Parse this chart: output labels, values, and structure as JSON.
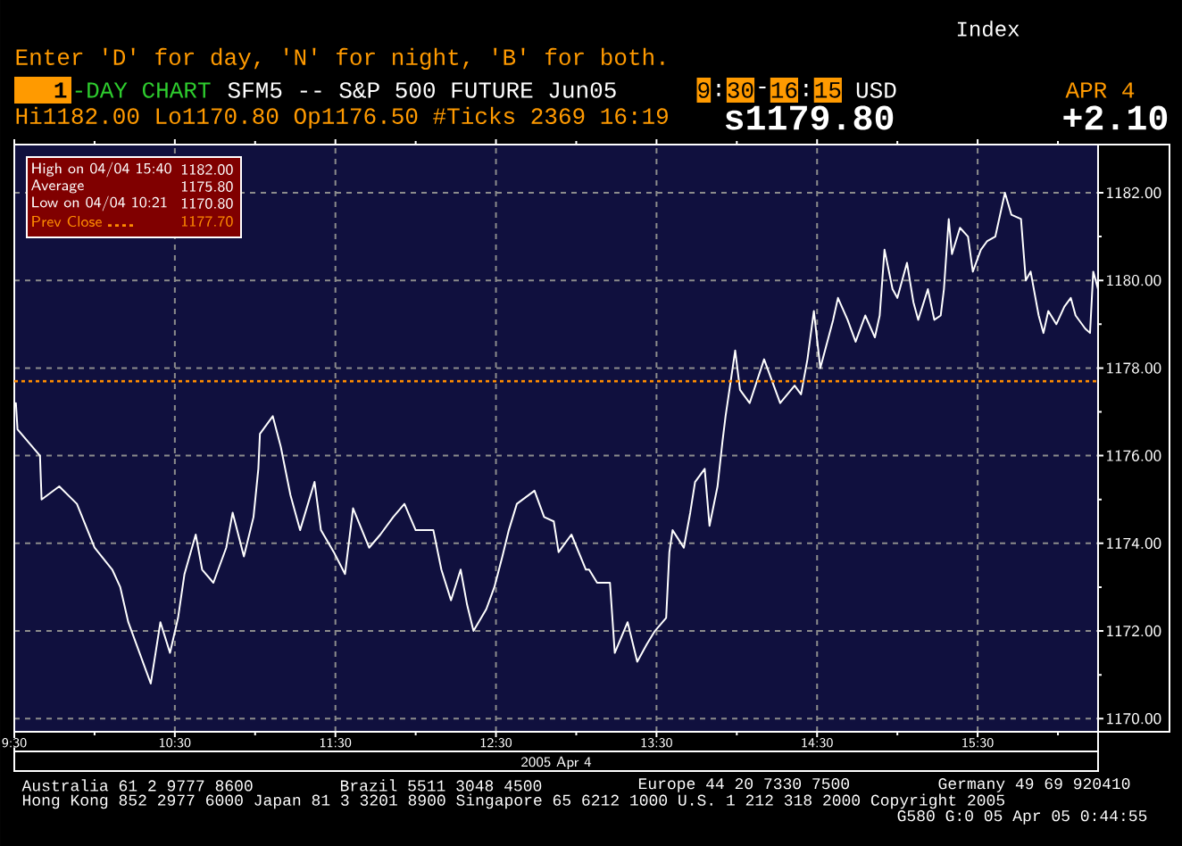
{
  "chart_data": {
    "type": "line",
    "title": "SFM5 -- S&P 500 FUTURE Jun05",
    "xlabel": "2005 Apr 4",
    "x": [
      9.51,
      9.52,
      9.66,
      9.67,
      9.78,
      9.89,
      10.0,
      10.11,
      10.16,
      10.21,
      10.35,
      10.41,
      10.47,
      10.52,
      10.56,
      10.63,
      10.67,
      10.74,
      10.82,
      10.86,
      10.93,
      10.99,
      11.02,
      11.03,
      11.11,
      11.16,
      11.22,
      11.28,
      11.37,
      11.41,
      11.49,
      11.56,
      11.61,
      11.71,
      11.78,
      11.86,
      11.93,
      12.0,
      12.11,
      12.16,
      12.22,
      12.28,
      12.32,
      12.36,
      12.44,
      12.49,
      12.54,
      12.58,
      12.63,
      12.74,
      12.8,
      12.86,
      12.89,
      12.97,
      13.06,
      13.08,
      13.13,
      13.21,
      13.24,
      13.32,
      13.38,
      13.44,
      13.49,
      13.56,
      13.58,
      13.6,
      13.67,
      13.71,
      13.74,
      13.8,
      13.83,
      13.88,
      13.91,
      13.93,
      13.99,
      14.02,
      14.08,
      14.17,
      14.27,
      14.36,
      14.4,
      14.44,
      14.48,
      14.52,
      14.6,
      14.63,
      14.69,
      14.74,
      14.8,
      14.86,
      14.89,
      14.92,
      14.97,
      15.0,
      15.06,
      15.1,
      15.13,
      15.19,
      15.23,
      15.27,
      15.29,
      15.32,
      15.34,
      15.39,
      15.44,
      15.47,
      15.52,
      15.56,
      15.61,
      15.67,
      15.71,
      15.77,
      15.8,
      15.83,
      15.88,
      15.91,
      15.94,
      15.99,
      16.04,
      16.08,
      16.11,
      16.17,
      16.2,
      16.22,
      16.25
    ],
    "values": [
      1177.2,
      1176.6,
      1176.0,
      1175.0,
      1175.3,
      1174.9,
      1173.9,
      1173.4,
      1173.0,
      1172.2,
      1170.8,
      1172.2,
      1171.5,
      1172.3,
      1173.3,
      1174.2,
      1173.4,
      1173.1,
      1173.9,
      1174.7,
      1173.7,
      1174.6,
      1175.7,
      1176.5,
      1176.9,
      1176.2,
      1175.1,
      1174.3,
      1175.4,
      1174.3,
      1173.8,
      1173.3,
      1174.8,
      1173.9,
      1174.2,
      1174.6,
      1174.9,
      1174.3,
      1174.3,
      1173.4,
      1172.7,
      1173.4,
      1172.6,
      1172.0,
      1172.5,
      1173.0,
      1173.7,
      1174.3,
      1174.9,
      1175.2,
      1174.6,
      1174.5,
      1173.8,
      1174.2,
      1173.4,
      1173.4,
      1173.1,
      1173.1,
      1171.5,
      1172.2,
      1171.3,
      1171.7,
      1172.0,
      1172.3,
      1173.8,
      1174.3,
      1173.9,
      1174.7,
      1175.4,
      1175.7,
      1174.4,
      1175.3,
      1176.3,
      1176.9,
      1178.4,
      1177.5,
      1177.2,
      1178.2,
      1177.2,
      1177.6,
      1177.4,
      1178.2,
      1179.3,
      1178.0,
      1179.1,
      1179.6,
      1179.1,
      1178.6,
      1179.2,
      1178.7,
      1179.2,
      1180.7,
      1179.8,
      1179.6,
      1180.4,
      1179.5,
      1179.1,
      1179.8,
      1179.1,
      1179.2,
      1179.8,
      1181.4,
      1180.6,
      1181.2,
      1181.0,
      1180.2,
      1180.7,
      1180.9,
      1181.0,
      1182.0,
      1181.5,
      1181.4,
      1180.0,
      1180.2,
      1179.2,
      1178.8,
      1179.3,
      1179.0,
      1179.4,
      1179.6,
      1179.2,
      1178.9,
      1178.8,
      1180.2,
      1179.8
    ],
    "color": "#ffffff",
    "xlim": [
      9.5,
      16.25
    ],
    "xticks": [
      {
        "value": 9.5,
        "label": "9:30"
      },
      {
        "value": 10,
        "label": null
      },
      {
        "value": 10.5,
        "label": "10:30"
      },
      {
        "value": 11,
        "label": null
      },
      {
        "value": 11.5,
        "label": "11:30"
      },
      {
        "value": 12,
        "label": null
      },
      {
        "value": 12.5,
        "label": "12:30"
      },
      {
        "value": 13,
        "label": null
      },
      {
        "value": 13.5,
        "label": "13:30"
      },
      {
        "value": 14,
        "label": null
      },
      {
        "value": 14.5,
        "label": "14:30"
      },
      {
        "value": 15,
        "label": null
      },
      {
        "value": 15.5,
        "label": "15:30"
      },
      {
        "value": 16,
        "label": null
      }
    ],
    "ylim": [
      1169.7,
      1183.1
    ],
    "yticks": [
      {
        "value": 1170,
        "label": "1170.00"
      },
      {
        "value": 1171,
        "label": null
      },
      {
        "value": 1172,
        "label": "1172.00"
      },
      {
        "value": 1173,
        "label": null
      },
      {
        "value": 1174,
        "label": "1174.00"
      },
      {
        "value": 1175,
        "label": null
      },
      {
        "value": 1176,
        "label": "1176.00"
      },
      {
        "value": 1177,
        "label": null
      },
      {
        "value": 1178,
        "label": "1178.00"
      },
      {
        "value": 1179,
        "label": null
      },
      {
        "value": 1180,
        "label": "1180.00"
      },
      {
        "value": 1181,
        "label": null
      },
      {
        "value": 1182,
        "label": "1182.00"
      }
    ],
    "grid": true,
    "ref_lines": [
      {
        "axis": "y",
        "value": 1177.7,
        "label": "Prev Close",
        "color": "#ff8c00",
        "line_style": "dotted"
      }
    ],
    "annotations": [
      "Index",
      "Enter 'D' for day, 'N' for night, 'B' for both.",
      "1",
      "-DAY CHART",
      "9",
      ":",
      "30",
      "-",
      "16",
      ":",
      "15",
      "USD",
      "APR 4",
      "Hi1182.00 Lo1170.80 Op1176.50 #Ticks 2369 16:19",
      "s1179.80",
      "+2.10",
      "High on 04/04 15:40",
      "1182.00",
      "Average",
      "1175.80",
      "Low on 04/04 10:21",
      "1170.80",
      "1177.70",
      "Australia 61 2 9777 8600",
      "Brazil 5511 3048 4500",
      "Europe 44 20 7330 7500",
      "Germany 49 69 920410",
      "Hong Kong 852 2977 6000 Japan 81 3 3201 8900 Singapore 65 6212 1000 U.S. 1 212 318 2000 Copyright 2005",
      "G580 G:0 05 Apr 05 0:44:55"
    ]
  }
}
